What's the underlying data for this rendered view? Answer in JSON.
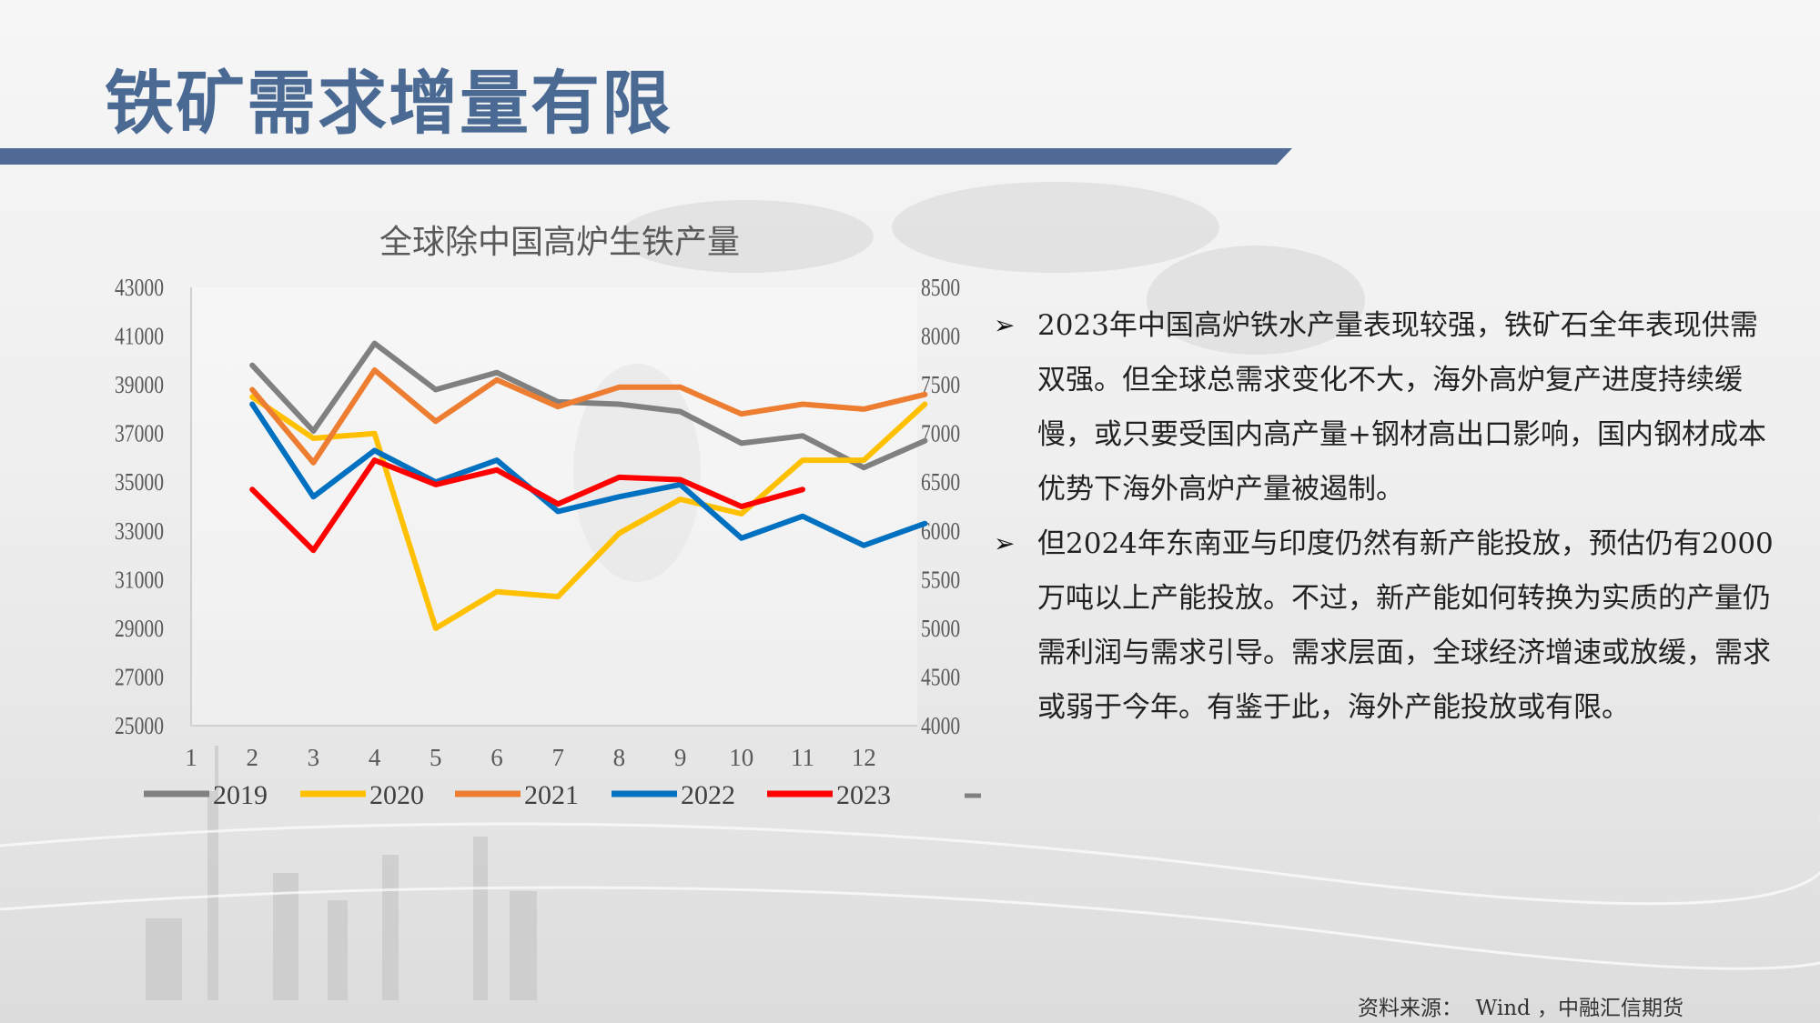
{
  "page": {
    "title": "铁矿需求增量有限",
    "source": "资料来源：  Wind ，中融汇信期货"
  },
  "bullets": [
    {
      "icon": "arrow-bullet-icon",
      "text": "2023年中国高炉铁水产量表现较强，铁矿石全年表现供需双强。但全球总需求变化不大，海外高炉复产进度持续缓慢，或只要受国内高产量+钢材高出口影响，国内钢材成本优势下海外高炉产量被遏制。"
    },
    {
      "icon": "arrow-bullet-icon",
      "text": "但2024年东南亚与印度仍然有新产能投放，预估仍有2000万吨以上产能投放。不过，新产能如何转换为实质的产量仍需利润与需求引导。需求层面，全球经济增速或放缓，需求或弱于今年。有鉴于此，海外产能投放或有限。"
    }
  ],
  "chart_data": {
    "type": "line",
    "title": "全球除中国高炉生铁产量",
    "x": [
      1,
      2,
      3,
      4,
      5,
      6,
      7,
      8,
      9,
      10,
      11,
      12
    ],
    "xlabels": [
      "1",
      "2",
      "3",
      "4",
      "5",
      "6",
      "7",
      "8",
      "9",
      "10",
      "11",
      "12"
    ],
    "y_left": {
      "min": 25000,
      "max": 43000,
      "ticks": [
        "25000",
        "27000",
        "29000",
        "31000",
        "33000",
        "35000",
        "37000",
        "39000",
        "41000",
        "43000"
      ]
    },
    "y_right": {
      "min": 4000,
      "max": 8500,
      "ticks": [
        "4000",
        "4500",
        "5000",
        "5500",
        "6000",
        "6500",
        "7000",
        "7500",
        "8000",
        "8500"
      ]
    },
    "series": [
      {
        "name": "2019",
        "color": "#808080",
        "x": [
          2,
          3,
          4,
          5,
          6,
          7,
          8,
          9,
          10,
          11,
          12,
          13
        ],
        "values": [
          39800,
          37100,
          40700,
          38800,
          39500,
          38300,
          38200,
          37900,
          36600,
          36900,
          35600,
          36700
        ]
      },
      {
        "name": "2020",
        "color": "#ffc000",
        "x": [
          2,
          3,
          4,
          5,
          6,
          7,
          8,
          9,
          10,
          11,
          12,
          13
        ],
        "values": [
          38500,
          36800,
          37000,
          29000,
          30500,
          30300,
          32900,
          34300,
          33700,
          35900,
          35900,
          38200
        ]
      },
      {
        "name": "2021",
        "color": "#ed7d31",
        "x": [
          2,
          3,
          4,
          5,
          6,
          7,
          8,
          9,
          10,
          11,
          12,
          13
        ],
        "values": [
          38800,
          35800,
          39600,
          37500,
          39200,
          38100,
          38900,
          38900,
          37800,
          38200,
          38000,
          38600
        ]
      },
      {
        "name": "2022",
        "color": "#0070c0",
        "x": [
          2,
          3,
          4,
          5,
          6,
          7,
          8,
          9,
          10,
          11,
          12,
          13
        ],
        "values": [
          38200,
          34400,
          36300,
          35000,
          35900,
          33800,
          34400,
          34900,
          32700,
          33600,
          32400,
          33300
        ]
      },
      {
        "name": "2023",
        "color": "#ff0000",
        "x": [
          2,
          3,
          4,
          5,
          6,
          7,
          8,
          9,
          10,
          11
        ],
        "values": [
          34700,
          32200,
          35900,
          34900,
          35500,
          34100,
          35200,
          35100,
          34000,
          34700
        ]
      }
    ],
    "legend_position": "bottom",
    "grid": false
  }
}
